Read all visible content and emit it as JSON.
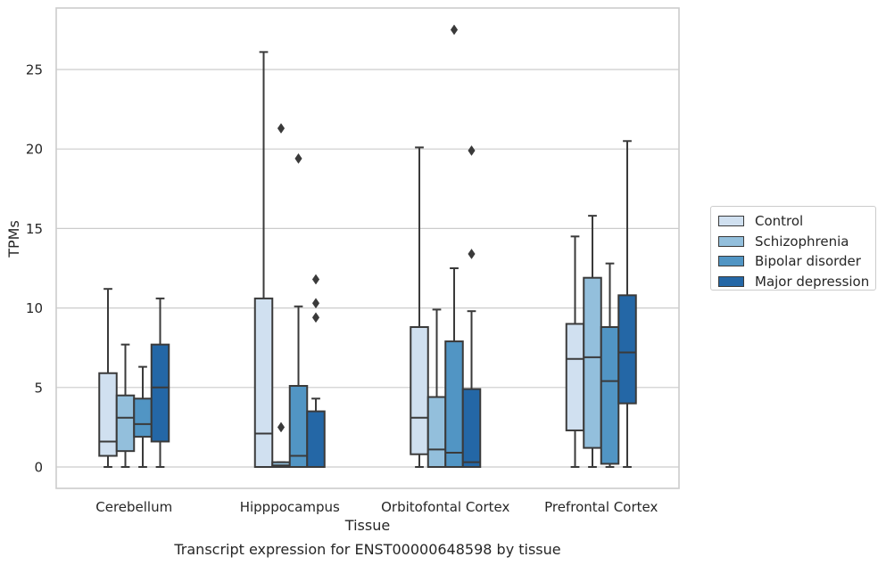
{
  "chart_data": {
    "type": "boxplot",
    "title": "Transcript expression for ENST00000648598 by tissue",
    "xlabel": "Tissue",
    "ylabel": "TPMs",
    "ylim": [
      -1.3,
      28.6
    ],
    "yticks": [
      0,
      5,
      10,
      15,
      20,
      25
    ],
    "grid": "y",
    "legend_position": "right",
    "categories": [
      "Cerebellum",
      "Hipppocampus",
      "Orbitofontal Cortex",
      "Prefrontal Cortex"
    ],
    "series": [
      {
        "name": "Control",
        "color": "#d0e0f0",
        "boxes": [
          {
            "min": 0.0,
            "q1": 0.7,
            "median": 1.6,
            "q3": 5.9,
            "max": 11.2,
            "outliers": []
          },
          {
            "min": 0.0,
            "q1": 0.0,
            "median": 2.1,
            "q3": 10.6,
            "max": 26.1,
            "outliers": []
          },
          {
            "min": 0.0,
            "q1": 0.8,
            "median": 3.1,
            "q3": 8.8,
            "max": 20.1,
            "outliers": []
          },
          {
            "min": 0.0,
            "q1": 2.3,
            "median": 6.8,
            "q3": 9.0,
            "max": 14.5,
            "outliers": []
          }
        ]
      },
      {
        "name": "Schizophrenia",
        "color": "#93bfdc",
        "boxes": [
          {
            "min": 0.0,
            "q1": 1.0,
            "median": 3.1,
            "q3": 4.5,
            "max": 7.7,
            "outliers": []
          },
          {
            "min": 0.0,
            "q1": 0.0,
            "median": 0.1,
            "q3": 0.3,
            "max": 0.3,
            "outliers": [
              21.3,
              2.5
            ]
          },
          {
            "min": 0.0,
            "q1": 0.0,
            "median": 1.1,
            "q3": 4.4,
            "max": 9.9,
            "outliers": []
          },
          {
            "min": 0.0,
            "q1": 1.2,
            "median": 6.9,
            "q3": 11.9,
            "max": 15.8,
            "outliers": []
          }
        ]
      },
      {
        "name": "Bipolar disorder",
        "color": "#5195c4",
        "boxes": [
          {
            "min": 0.0,
            "q1": 1.9,
            "median": 2.7,
            "q3": 4.3,
            "max": 6.3,
            "outliers": []
          },
          {
            "min": 0.0,
            "q1": 0.0,
            "median": 0.7,
            "q3": 5.1,
            "max": 10.1,
            "outliers": [
              19.4
            ]
          },
          {
            "min": 0.0,
            "q1": 0.0,
            "median": 0.9,
            "q3": 7.9,
            "max": 12.5,
            "outliers": [
              27.5
            ]
          },
          {
            "min": 0.0,
            "q1": 0.2,
            "median": 5.4,
            "q3": 8.8,
            "max": 12.8,
            "outliers": []
          }
        ]
      },
      {
        "name": "Major depression",
        "color": "#2467a6",
        "boxes": [
          {
            "min": 0.0,
            "q1": 1.6,
            "median": 5.0,
            "q3": 7.7,
            "max": 10.6,
            "outliers": []
          },
          {
            "min": 0.0,
            "q1": 0.0,
            "median": 0.0,
            "q3": 3.5,
            "max": 4.3,
            "outliers": [
              11.8,
              10.3,
              9.4
            ]
          },
          {
            "min": 0.0,
            "q1": 0.0,
            "median": 0.3,
            "q3": 4.9,
            "max": 9.8,
            "outliers": [
              19.9,
              13.4
            ]
          },
          {
            "min": 0.0,
            "q1": 4.0,
            "median": 7.2,
            "q3": 10.8,
            "max": 20.5,
            "outliers": []
          }
        ]
      }
    ]
  }
}
